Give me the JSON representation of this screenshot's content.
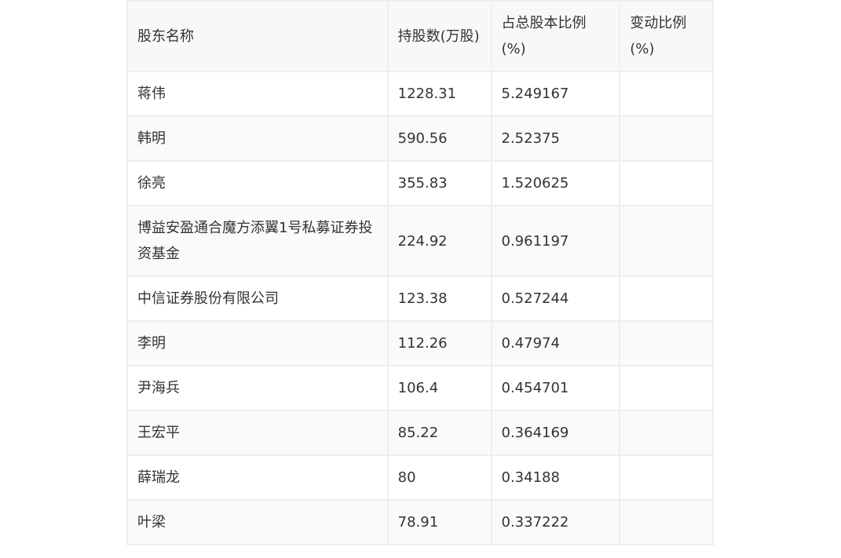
{
  "table": {
    "headers": [
      "股东名称",
      "持股数(万股)",
      "占总股本比例(%)",
      "变动比例(%)"
    ],
    "rows": [
      [
        "蒋伟",
        "1228.31",
        "5.249167",
        ""
      ],
      [
        "韩明",
        "590.56",
        "2.52375",
        ""
      ],
      [
        "徐亮",
        "355.83",
        "1.520625",
        ""
      ],
      [
        "博益安盈通合魔方添翼1号私募证券投资基金",
        "224.92",
        "0.961197",
        ""
      ],
      [
        "中信证券股份有限公司",
        "123.38",
        "0.527244",
        ""
      ],
      [
        "李明",
        "112.26",
        "0.47974",
        ""
      ],
      [
        "尹海兵",
        "106.4",
        "0.454701",
        ""
      ],
      [
        "王宏平",
        "85.22",
        "0.364169",
        ""
      ],
      [
        "薛瑞龙",
        "80",
        "0.34188",
        ""
      ],
      [
        "叶梁",
        "78.91",
        "0.337222",
        ""
      ]
    ]
  }
}
